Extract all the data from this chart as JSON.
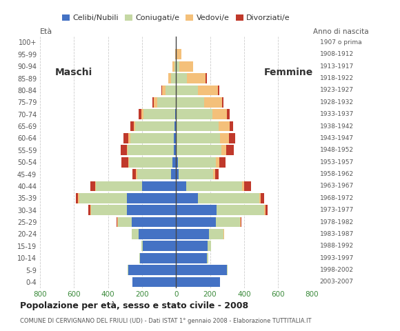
{
  "age_groups": [
    "0-4",
    "5-9",
    "10-14",
    "15-19",
    "20-24",
    "25-29",
    "30-34",
    "35-39",
    "40-44",
    "45-49",
    "50-54",
    "55-59",
    "60-64",
    "65-69",
    "70-74",
    "75-79",
    "80-84",
    "85-89",
    "90-94",
    "95-99",
    "100+"
  ],
  "birth_years": [
    "2003-2007",
    "1998-2002",
    "1993-1997",
    "1988-1992",
    "1983-1987",
    "1978-1982",
    "1973-1977",
    "1968-1972",
    "1963-1967",
    "1958-1962",
    "1953-1957",
    "1948-1952",
    "1943-1947",
    "1938-1942",
    "1933-1937",
    "1928-1932",
    "1923-1927",
    "1918-1922",
    "1913-1917",
    "1908-1912",
    "1907 o prima"
  ],
  "male": {
    "celibi": [
      255,
      280,
      210,
      195,
      220,
      260,
      290,
      290,
      200,
      30,
      20,
      15,
      15,
      10,
      5,
      0,
      0,
      0,
      0,
      0,
      0
    ],
    "coniugati": [
      0,
      5,
      5,
      10,
      40,
      80,
      210,
      280,
      270,
      200,
      255,
      270,
      255,
      230,
      185,
      110,
      60,
      30,
      10,
      0,
      0
    ],
    "vedovi": [
      0,
      0,
      0,
      0,
      0,
      5,
      5,
      5,
      5,
      5,
      5,
      5,
      10,
      10,
      15,
      20,
      20,
      15,
      10,
      5,
      0
    ],
    "divorziati": [
      0,
      0,
      0,
      0,
      0,
      5,
      10,
      15,
      30,
      20,
      40,
      35,
      30,
      20,
      15,
      10,
      5,
      0,
      0,
      0,
      0
    ]
  },
  "female": {
    "nubili": [
      260,
      300,
      180,
      185,
      195,
      235,
      240,
      130,
      60,
      15,
      10,
      5,
      5,
      5,
      5,
      0,
      0,
      0,
      0,
      0,
      0
    ],
    "coniugate": [
      0,
      5,
      10,
      20,
      85,
      140,
      280,
      360,
      330,
      205,
      225,
      260,
      255,
      245,
      210,
      165,
      130,
      65,
      20,
      5,
      0
    ],
    "vedove": [
      0,
      0,
      0,
      0,
      5,
      5,
      5,
      10,
      10,
      10,
      20,
      30,
      50,
      65,
      85,
      105,
      115,
      110,
      80,
      25,
      5
    ],
    "divorziate": [
      0,
      0,
      0,
      0,
      0,
      5,
      15,
      20,
      40,
      20,
      35,
      45,
      40,
      20,
      15,
      10,
      10,
      5,
      0,
      0,
      0
    ]
  },
  "colors": {
    "celibi": "#4472C4",
    "coniugati": "#C5D8A4",
    "vedovi": "#F4C07A",
    "divorziati": "#C0392B"
  },
  "xlim": 800,
  "title": "Popolazione per età, sesso e stato civile - 2008",
  "subtitle": "COMUNE DI CERVIGNANO DEL FRIULI (UD) - Dati ISTAT 1° gennaio 2008 - Elaborazione TUTTITALIA.IT",
  "legend_labels": [
    "Celibi/Nubili",
    "Coniugati/e",
    "Vedovi/e",
    "Divorziati/e"
  ],
  "maschi_label": "Maschi",
  "femmine_label": "Femmine",
  "eta_label": "Età",
  "anno_label": "Anno di nascita"
}
